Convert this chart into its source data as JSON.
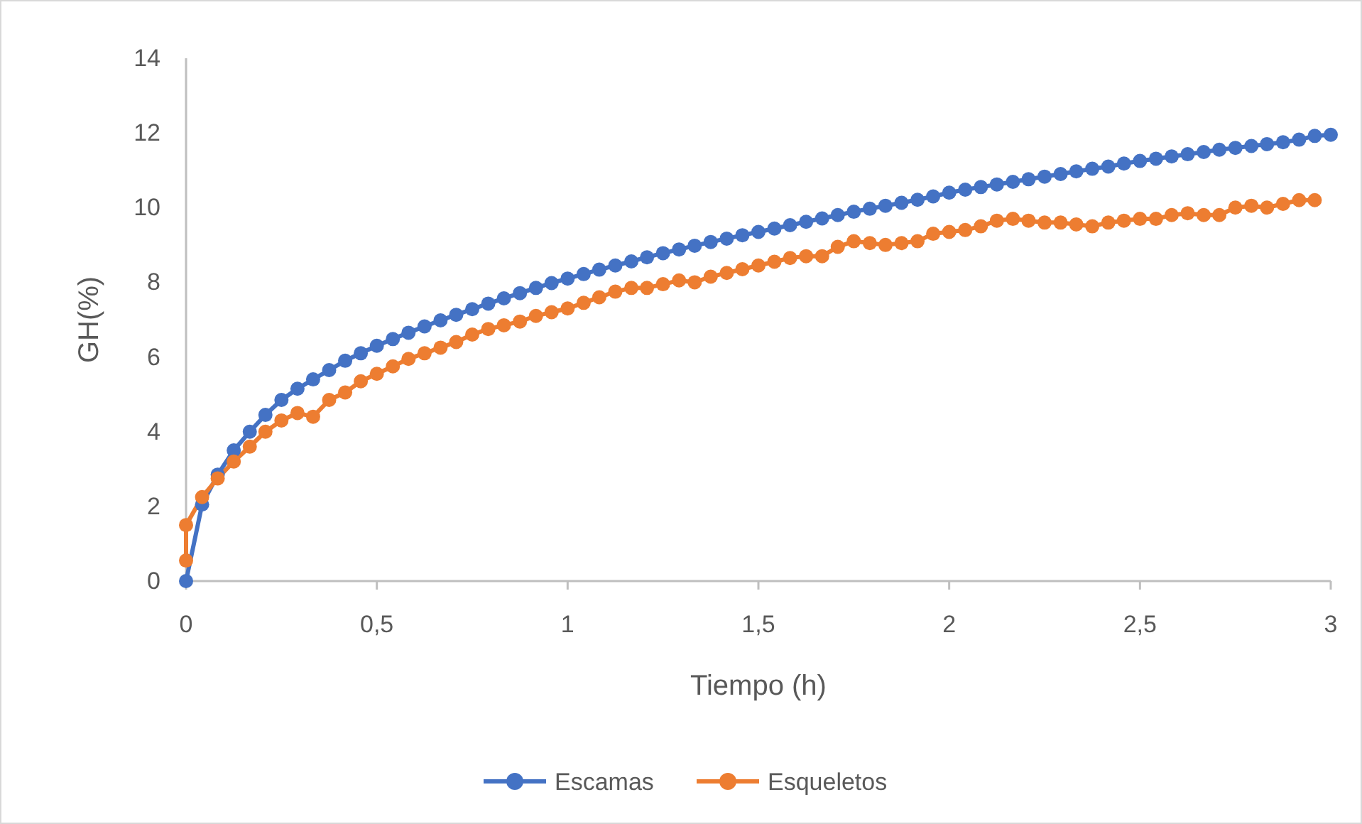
{
  "chart_data": {
    "type": "line",
    "xlabel": "Tiempo (h)",
    "ylabel": "GH(%)",
    "marker": "circle",
    "line_style": "solid",
    "legend": "bottom",
    "grid": false,
    "xlim": [
      0,
      3
    ],
    "xticks": [
      0,
      {
        "value": 0.5,
        "label": "0,5"
      },
      1,
      {
        "value": 1.5,
        "label": "1,5"
      },
      2,
      {
        "value": 2.5,
        "label": "2,5"
      },
      3
    ],
    "ylim": [
      0,
      14
    ],
    "yticks": [
      0,
      2,
      4,
      6,
      8,
      10,
      12,
      14
    ],
    "series": [
      {
        "name": "Escamas",
        "color": "#4472c4",
        "x": [
          0,
          0.042,
          0.083,
          0.125,
          0.167,
          0.208,
          0.25,
          0.292,
          0.333,
          0.375,
          0.417,
          0.458,
          0.5,
          0.542,
          0.583,
          0.625,
          0.667,
          0.708,
          0.75,
          0.792,
          0.833,
          0.875,
          0.917,
          0.958,
          1,
          1.042,
          1.083,
          1.125,
          1.167,
          1.208,
          1.25,
          1.292,
          1.333,
          1.375,
          1.417,
          1.458,
          1.5,
          1.542,
          1.583,
          1.625,
          1.667,
          1.708,
          1.75,
          1.792,
          1.833,
          1.875,
          1.917,
          1.958,
          2,
          2.042,
          2.083,
          2.125,
          2.167,
          2.208,
          2.25,
          2.292,
          2.333,
          2.375,
          2.417,
          2.458,
          2.5,
          2.542,
          2.583,
          2.625,
          2.667,
          2.708,
          2.75,
          2.792,
          2.833,
          2.875,
          2.917,
          2.958,
          3
        ],
        "values": [
          0,
          2.05,
          2.85,
          3.5,
          4.0,
          4.45,
          4.85,
          5.15,
          5.4,
          5.65,
          5.9,
          6.1,
          6.3,
          6.48,
          6.65,
          6.82,
          6.98,
          7.13,
          7.28,
          7.43,
          7.57,
          7.71,
          7.85,
          7.98,
          8.1,
          8.22,
          8.34,
          8.45,
          8.56,
          8.67,
          8.78,
          8.88,
          8.98,
          9.08,
          9.17,
          9.26,
          9.35,
          9.44,
          9.53,
          9.62,
          9.71,
          9.8,
          9.89,
          9.97,
          10.05,
          10.13,
          10.21,
          10.3,
          10.4,
          10.48,
          10.55,
          10.62,
          10.69,
          10.76,
          10.83,
          10.9,
          10.97,
          11.04,
          11.1,
          11.18,
          11.25,
          11.31,
          11.37,
          11.43,
          11.49,
          11.55,
          11.6,
          11.65,
          11.7,
          11.75,
          11.82,
          11.92,
          11.95
        ]
      },
      {
        "name": "Esqueletos",
        "color": "#ed7d31",
        "x": [
          0,
          0,
          0.042,
          0.083,
          0.125,
          0.167,
          0.208,
          0.25,
          0.292,
          0.333,
          0.375,
          0.417,
          0.458,
          0.5,
          0.542,
          0.583,
          0.625,
          0.667,
          0.708,
          0.75,
          0.792,
          0.833,
          0.875,
          0.917,
          0.958,
          1,
          1.042,
          1.083,
          1.125,
          1.167,
          1.208,
          1.25,
          1.292,
          1.333,
          1.375,
          1.417,
          1.458,
          1.5,
          1.542,
          1.583,
          1.625,
          1.667,
          1.708,
          1.75,
          1.792,
          1.833,
          1.875,
          1.917,
          1.958,
          2,
          2.042,
          2.083,
          2.125,
          2.167,
          2.208,
          2.25,
          2.292,
          2.333,
          2.375,
          2.417,
          2.458,
          2.5,
          2.542,
          2.583,
          2.625,
          2.667,
          2.708,
          2.75,
          2.792,
          2.833,
          2.875,
          2.917,
          2.958
        ],
        "values": [
          0.55,
          1.5,
          2.25,
          2.75,
          3.2,
          3.6,
          4.0,
          4.3,
          4.5,
          4.4,
          4.85,
          5.05,
          5.35,
          5.55,
          5.75,
          5.95,
          6.1,
          6.25,
          6.4,
          6.6,
          6.75,
          6.85,
          6.95,
          7.1,
          7.2,
          7.3,
          7.45,
          7.6,
          7.75,
          7.85,
          7.85,
          7.95,
          8.05,
          8.0,
          8.15,
          8.25,
          8.35,
          8.45,
          8.55,
          8.65,
          8.7,
          8.7,
          8.95,
          9.1,
          9.05,
          9.0,
          9.05,
          9.1,
          9.3,
          9.35,
          9.4,
          9.5,
          9.65,
          9.7,
          9.65,
          9.6,
          9.6,
          9.55,
          9.5,
          9.6,
          9.65,
          9.7,
          9.7,
          9.8,
          9.85,
          9.8,
          9.8,
          10.0,
          10.05,
          10.0,
          10.1,
          10.2,
          10.2
        ]
      }
    ]
  }
}
